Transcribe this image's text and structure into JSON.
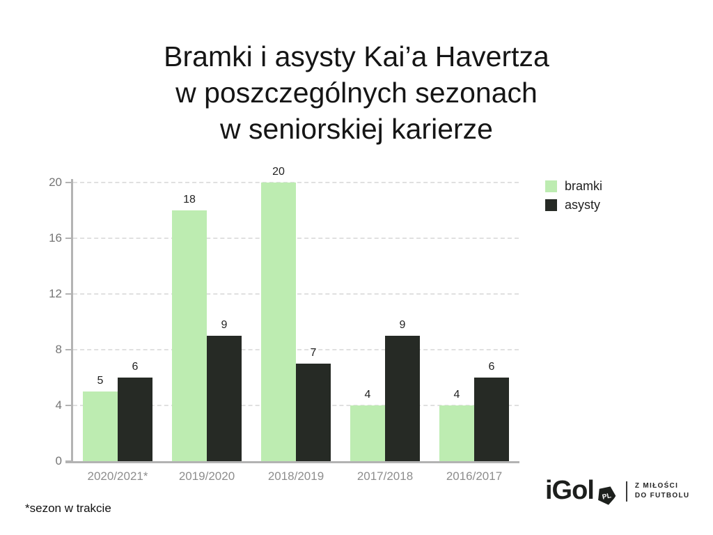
{
  "title": "Bramki i asysty Kai’a Havertza\nw poszczególnych sezonach\nw seniorskiej karierze",
  "footnote": "*sezon w trakcie",
  "chart_data": {
    "type": "bar",
    "title": "Bramki i asysty Kai’a Havertza w poszczególnych sezonach w seniorskiej karierze",
    "categories": [
      "2020/2021*",
      "2019/2020",
      "2018/2019",
      "2017/2018",
      "2016/2017"
    ],
    "series": [
      {
        "name": "bramki",
        "color": "#bdecb1",
        "values": [
          5,
          18,
          20,
          4,
          4
        ]
      },
      {
        "name": "asysty",
        "color": "#262a25",
        "values": [
          6,
          9,
          7,
          9,
          6
        ]
      }
    ],
    "xlabel": "",
    "ylabel": "",
    "ylim": [
      0,
      20
    ],
    "yticks": [
      0,
      4,
      8,
      12,
      16,
      20
    ],
    "grid": true,
    "bar_value_labels": true,
    "legend_position": "right"
  },
  "legend": {
    "items": [
      "bramki",
      "asysty"
    ]
  },
  "logo": {
    "wordmark": "iGol",
    "badge": "PL",
    "tagline_line1": "Z MIŁOŚCI",
    "tagline_line2": "DO FUTBOLU"
  },
  "colors": {
    "bramki": "#bdecb1",
    "asysty": "#262a25",
    "axis": "#b3b3b3",
    "gridline": "#e0e0e0",
    "y_tick_label": "#757575",
    "category_label": "#8d8d8d",
    "value_label": "#222222",
    "title_text": "#151515"
  }
}
